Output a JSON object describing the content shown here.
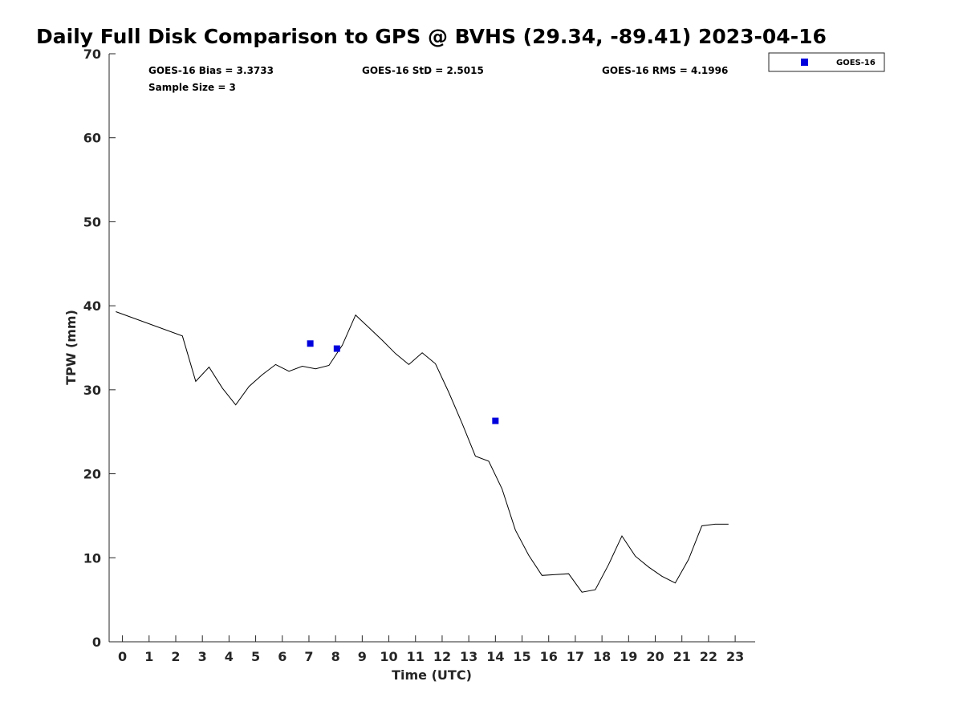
{
  "chart_data": {
    "type": "line",
    "title": "Daily Full Disk Comparison to GPS @ BVHS (29.34, -89.41) 2023-04-16",
    "xlabel": "Time (UTC)",
    "ylabel": "TPW (mm)",
    "xlim": [
      -0.5,
      23.75
    ],
    "ylim": [
      0,
      70
    ],
    "xticks": [
      0,
      1,
      2,
      3,
      4,
      5,
      6,
      7,
      8,
      9,
      10,
      11,
      12,
      13,
      14,
      15,
      16,
      17,
      18,
      19,
      20,
      21,
      22,
      23
    ],
    "yticks": [
      0,
      10,
      20,
      30,
      40,
      50,
      60,
      70
    ],
    "grid": false,
    "legend_position": "top-right",
    "stats": {
      "bias": "GOES-16 Bias = 3.3733",
      "std": "GOES-16 StD = 2.5015",
      "rms": "GOES-16 RMS = 4.1996",
      "sample": "Sample Size = 3"
    },
    "series": [
      {
        "style": "line",
        "color": "#000000",
        "x": [
          -0.25,
          2.25,
          2.75,
          3.25,
          3.75,
          4.25,
          4.75,
          5.25,
          5.75,
          6.25,
          6.75,
          7.25,
          7.75,
          8.25,
          8.75,
          9.25,
          9.75,
          10.25,
          10.75,
          11.25,
          11.75,
          12.25,
          12.75,
          13.25,
          13.75,
          14.25,
          14.75,
          15.25,
          15.75,
          16.25,
          16.75,
          17.25,
          17.75,
          18.25,
          18.75,
          19.25,
          19.75,
          20.25,
          20.75,
          21.25,
          21.75,
          22.25,
          22.75
        ],
        "y": [
          39.3,
          36.4,
          31.0,
          32.7,
          30.2,
          28.2,
          30.4,
          31.8,
          33.0,
          32.2,
          32.8,
          32.5,
          32.9,
          35.3,
          38.9,
          37.4,
          35.9,
          34.3,
          33.0,
          34.4,
          33.1,
          29.7,
          26.0,
          22.1,
          21.5,
          18.2,
          13.3,
          10.3,
          7.9,
          8.0,
          8.1,
          5.9,
          6.2,
          9.2,
          12.6,
          10.2,
          8.9,
          7.8,
          7.0,
          9.8,
          13.8,
          14.0,
          14.0
        ]
      },
      {
        "name": "GOES-16",
        "style": "marker",
        "color": "#0000dd",
        "x": [
          7.05,
          8.05,
          14.0
        ],
        "y": [
          35.5,
          34.9,
          26.3
        ]
      }
    ]
  }
}
